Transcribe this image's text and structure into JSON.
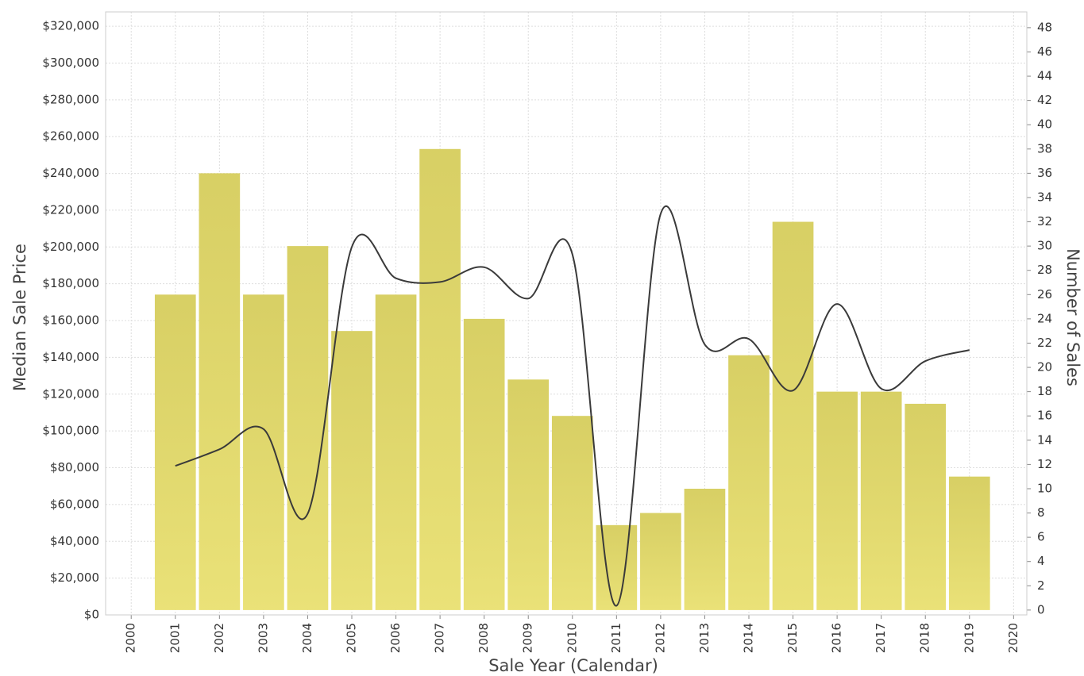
{
  "chart_data": {
    "type": "bar-line",
    "x_label": "Sale Year (Calendar)",
    "y_label": "Median Sale Price",
    "y2_label": "Number of Sales",
    "x": [
      2001,
      2002,
      2003,
      2004,
      2005,
      2006,
      2007,
      2008,
      2009,
      2010,
      2011,
      2012,
      2013,
      2014,
      2015,
      2016,
      2017,
      2018,
      2019
    ],
    "series": [
      {
        "name": "Number of Sales",
        "type": "bar",
        "axis": "y2",
        "color": "#e8df6c",
        "values": [
          26,
          36,
          26,
          30,
          23,
          26,
          38,
          24,
          19,
          16,
          7,
          8,
          10,
          21,
          32,
          18,
          18,
          17,
          11
        ]
      },
      {
        "name": "Median Sale Price",
        "type": "line",
        "color": "#3a3a3a",
        "values": [
          81000,
          90000,
          101000,
          55000,
          200000,
          183000,
          181000,
          189000,
          172000,
          196000,
          5000,
          218000,
          147000,
          150000,
          122000,
          169000,
          123000,
          138000,
          144000
        ]
      }
    ],
    "xlim": [
      1999.42,
      2020.3
    ],
    "xticks": [
      2000,
      2001,
      2002,
      2003,
      2004,
      2005,
      2006,
      2007,
      2008,
      2009,
      2010,
      2011,
      2012,
      2013,
      2014,
      2015,
      2016,
      2017,
      2018,
      2019,
      2020
    ],
    "ylim": [
      0,
      327800
    ],
    "yticks": [
      {
        "value": 0,
        "label": "$0"
      },
      {
        "value": 20000,
        "label": "$20,000"
      },
      {
        "value": 40000,
        "label": "$40,000"
      },
      {
        "value": 60000,
        "label": "$60,000"
      },
      {
        "value": 80000,
        "label": "$80,000"
      },
      {
        "value": 100000,
        "label": "$100,000"
      },
      {
        "value": 120000,
        "label": "$120,000"
      },
      {
        "value": 140000,
        "label": "$140,000"
      },
      {
        "value": 160000,
        "label": "$160,000"
      },
      {
        "value": 180000,
        "label": "$180,000"
      },
      {
        "value": 200000,
        "label": "$200,000"
      },
      {
        "value": 220000,
        "label": "$220,000"
      },
      {
        "value": 240000,
        "label": "$240,000"
      },
      {
        "value": 260000,
        "label": "$260,000"
      },
      {
        "value": 280000,
        "label": "$280,000"
      },
      {
        "value": 300000,
        "label": "$300,000"
      },
      {
        "value": 320000,
        "label": "$320,000"
      }
    ],
    "y2lim": [
      -0.4,
      49.3
    ],
    "y2ticks": [
      0,
      2,
      4,
      6,
      8,
      10,
      12,
      14,
      16,
      18,
      20,
      22,
      24,
      26,
      28,
      30,
      32,
      34,
      36,
      38,
      40,
      42,
      44,
      46,
      48
    ],
    "grid": true
  }
}
